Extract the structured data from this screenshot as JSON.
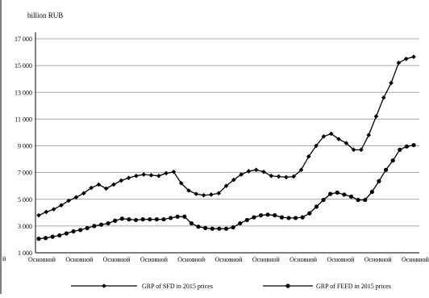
{
  "chart_data": {
    "type": "line",
    "ylabel": "billion  RUB",
    "ylim": [
      1000,
      17000
    ],
    "yticks": [
      1000,
      3000,
      5000,
      7000,
      9000,
      11000,
      13000,
      15000,
      17000
    ],
    "ytick_labels": [
      "1 000",
      "3 000",
      "5 000",
      "7 000",
      "9 000",
      "11 000",
      "13 000",
      "15 000",
      "17 000"
    ],
    "x_tick_labels": [
      "Основной",
      "Основной",
      "Основной",
      "Основной",
      "Основной",
      "Основной",
      "Основной",
      "Основной",
      "Основной",
      "Основной",
      "Основной"
    ],
    "left_edge_label": "й",
    "grid": true,
    "legend_position": "bottom",
    "series": [
      {
        "name": "GRP of SFD in 2015 prices",
        "marker": "diamond",
        "color": "#000000",
        "values": [
          3800,
          4050,
          4250,
          4550,
          4900,
          5150,
          5450,
          5850,
          6100,
          5800,
          6100,
          6400,
          6600,
          6750,
          6850,
          6800,
          6750,
          6950,
          7050,
          6200,
          5650,
          5400,
          5300,
          5350,
          5450,
          6000,
          6450,
          6850,
          7100,
          7200,
          7050,
          6750,
          6700,
          6650,
          6700,
          7200,
          8200,
          9000,
          9700,
          9900,
          9500,
          9200,
          8700,
          8700,
          9800,
          11200,
          12600,
          13700,
          15200,
          15500,
          15650
        ]
      },
      {
        "name": "GRP of FEFD in 2015 prices",
        "marker": "circle",
        "color": "#000000",
        "values": [
          2050,
          2100,
          2200,
          2300,
          2450,
          2600,
          2700,
          2850,
          3000,
          3100,
          3200,
          3400,
          3550,
          3500,
          3450,
          3500,
          3500,
          3500,
          3500,
          3600,
          3700,
          3700,
          3200,
          2950,
          2850,
          2800,
          2800,
          2800,
          2900,
          3200,
          3450,
          3650,
          3800,
          3850,
          3800,
          3650,
          3600,
          3600,
          3650,
          3950,
          4450,
          4950,
          5400,
          5500,
          5350,
          5200,
          4950,
          4950,
          5550,
          6350,
          7200,
          7900,
          8700,
          8950,
          9050
        ]
      }
    ]
  }
}
